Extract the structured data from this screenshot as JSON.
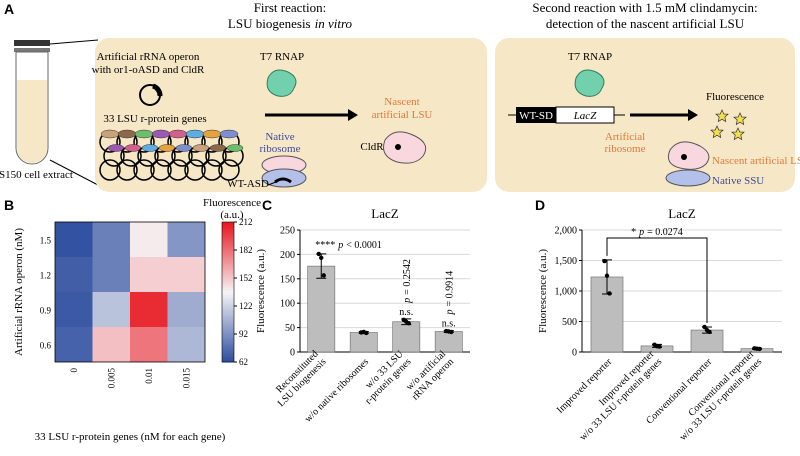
{
  "panel_a": {
    "label": "A",
    "tube_label": "S150 cell extract",
    "first_title": {
      "line1": "First reaction:",
      "line2": "LSU biogenesis",
      "line2_italic": "in vitro"
    },
    "operon_label": [
      "Artificial rRNA operon",
      "with or1-oASD and CldR"
    ],
    "genes_label": "33 LSU r-protein genes",
    "t7_first": "T7 RNAP",
    "native_ribosome": [
      "Native",
      "ribosome"
    ],
    "wt_asd": "WT-ASD",
    "nascent_first": [
      "Nascent",
      "artificial LSU"
    ],
    "cldr": "CldR",
    "second_title": [
      "Second reaction with 1.5 mM clindamycin:",
      "detection of the nascent artificial LSU"
    ],
    "t7_second": "T7 RNAP",
    "wt_sd": "WT-SD",
    "lacz": "LacZ",
    "fluorescence": "Fluorescence",
    "artificial_ribosome": [
      "Artificial",
      "ribosome"
    ],
    "nascent_second": "Nascent artificial LSU",
    "native_ssu": "Native SSU"
  },
  "panel_b": {
    "type": "heatmap",
    "label": "B",
    "x_categories": [
      "0",
      "0.005",
      "0.01",
      "0.015"
    ],
    "y_categories": [
      "1.5",
      "1.2",
      "0.9",
      "0.6"
    ],
    "values": [
      [
        65,
        85,
        140,
        95
      ],
      [
        70,
        85,
        150,
        150
      ],
      [
        68,
        115,
        205,
        105
      ],
      [
        72,
        155,
        180,
        110
      ]
    ],
    "xlabel": "33 LSU r-protein genes (nM for each gene)",
    "ylabel": "Artificial rRNA operon (nM)",
    "colorbar_title": [
      "Fluorescence",
      "(a.u.)"
    ],
    "clim": [
      62,
      212
    ],
    "cticks": [
      62,
      92,
      122,
      152,
      182,
      212
    ],
    "colormap": [
      "#2b4c9e",
      "#f6f4f6",
      "#e8161f"
    ]
  },
  "panel_c": {
    "type": "bar",
    "label": "C",
    "title": "LacZ",
    "ylabel": "Fluorescence (a.u.)",
    "categories": [
      [
        "Reconstituted",
        "LSU biogenesis"
      ],
      [
        "w/o native ribosomes"
      ],
      [
        "w/o 33 LSU",
        "r-protein genes"
      ],
      [
        "w/o artificial",
        "rRNA operon"
      ]
    ],
    "values": [
      176,
      40,
      62,
      42
    ],
    "errors": [
      25,
      2,
      6,
      2
    ],
    "points": [
      [
        201,
        193,
        157
      ],
      [
        40,
        41,
        39
      ],
      [
        66,
        62,
        59
      ],
      [
        43,
        42,
        41
      ]
    ],
    "ylim": [
      0,
      250
    ],
    "yticks": [
      0,
      50,
      100,
      150,
      200,
      250
    ],
    "color": "#bdbdbd",
    "grid": true,
    "annotations": [
      {
        "bar": 0,
        "parts": [
          "****",
          "p",
          "< 0.0001"
        ]
      },
      {
        "bar": 2,
        "ns": "n.s.",
        "parts": [
          "p",
          "= 0.2542"
        ]
      },
      {
        "bar": 3,
        "ns": "n.s.",
        "parts": [
          "p",
          "= 0.9914"
        ]
      }
    ]
  },
  "panel_d": {
    "type": "bar",
    "label": "D",
    "title": "LacZ",
    "ylabel": "Fluorescence (a.u.)",
    "categories": [
      [
        "Improved reporter"
      ],
      [
        "Improved reporter",
        "w/o 33 LSU r-protein genes"
      ],
      [
        "Conventional reporter"
      ],
      [
        "Conventional reporter",
        "w/o 33 LSU r-protein genes"
      ]
    ],
    "values": [
      1230,
      100,
      360,
      55
    ],
    "errors": [
      280,
      25,
      50,
      10
    ],
    "points": [
      [
        1490,
        1250,
        960
      ],
      [
        120,
        95,
        90
      ],
      [
        410,
        360,
        330
      ],
      [
        60,
        55,
        50
      ]
    ],
    "ylim": [
      0,
      2000
    ],
    "yticks": [
      0,
      500,
      {
        "value": 1000,
        "label": "1,000"
      },
      {
        "value": 1500,
        "label": "1,500"
      },
      {
        "value": 2000,
        "label": "2,000"
      }
    ],
    "color": "#bdbdbd",
    "grid": true,
    "bracket": {
      "from": 0,
      "to": 2,
      "parts": [
        "*",
        "p",
        "= 0.0274"
      ]
    }
  }
}
